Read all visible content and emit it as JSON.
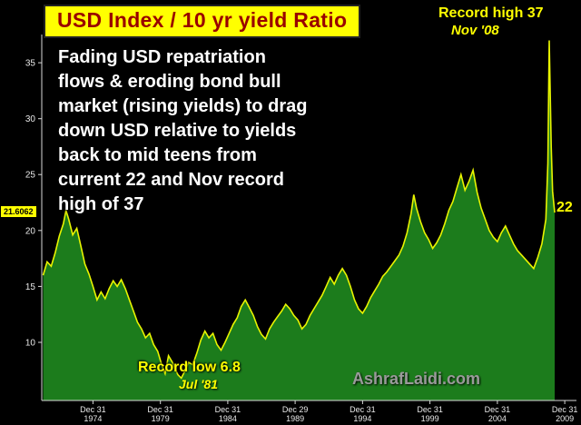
{
  "header": {
    "title": "USD Index / 10 yr yield Ratio",
    "record_high_label": "Record high 37",
    "record_high_date": "Nov '08"
  },
  "commentary": "Fading USD repatriation\nflows & eroding bond bull\nmarket (rising yields) to drag\ndown USD relative to yields\nback to mid teens from\ncurrent 22 and Nov record\nhigh of 37",
  "markers": {
    "axis_price": "21.6062",
    "current_level": "22",
    "record_low_label": "Record low 6.8",
    "record_low_date": "Jul '81"
  },
  "watermark": "AshrafLaidi.com",
  "colors": {
    "background": "#000000",
    "area_fill": "#1c7c1c",
    "line": "#e8f400",
    "accent_yellow": "#ffff00",
    "title_bg": "#ffff00",
    "title_text": "#990000",
    "axis_color": "#d8d8d8",
    "axis_text": "#e8e8e8",
    "watermark_text": "#9a9a9a"
  },
  "chart_data": {
    "type": "area",
    "title": "USD Index / 10 yr yield Ratio",
    "xlabel": "",
    "ylabel": "",
    "grid": false,
    "xlim": [
      1971.2,
      2010.6
    ],
    "ylim": [
      4.8,
      37.2
    ],
    "y_ticks": [
      10,
      15,
      20,
      25,
      30,
      35
    ],
    "x_ticks": [
      {
        "year": 1975.0,
        "line1": "Dec 31",
        "line2": "1974"
      },
      {
        "year": 1980.0,
        "line1": "Dec 31",
        "line2": "1979"
      },
      {
        "year": 1985.0,
        "line1": "Dec 31",
        "line2": "1984"
      },
      {
        "year": 1990.0,
        "line1": "Dec 29",
        "line2": "1989"
      },
      {
        "year": 1995.0,
        "line1": "Dec 31",
        "line2": "1994"
      },
      {
        "year": 2000.0,
        "line1": "Dec 31",
        "line2": "1999"
      },
      {
        "year": 2005.0,
        "line1": "Dec 31",
        "line2": "2004"
      },
      {
        "year": 2010.0,
        "line1": "Dec 31",
        "line2": "2009"
      }
    ],
    "notable_points": {
      "record_low": {
        "x": 1981.55,
        "value": 6.8,
        "label": "Jul '81"
      },
      "record_high": {
        "x": 2008.85,
        "value": 37,
        "label": "Nov '08"
      },
      "last": {
        "x": 2009.25,
        "value": 21.6062
      }
    },
    "points": [
      [
        1971.3,
        16.0
      ],
      [
        1971.6,
        17.2
      ],
      [
        1971.9,
        16.8
      ],
      [
        1972.2,
        18.0
      ],
      [
        1972.5,
        19.5
      ],
      [
        1972.8,
        20.6
      ],
      [
        1973.0,
        21.8
      ],
      [
        1973.2,
        21.0
      ],
      [
        1973.5,
        19.6
      ],
      [
        1973.8,
        20.2
      ],
      [
        1974.1,
        18.6
      ],
      [
        1974.4,
        17.0
      ],
      [
        1974.7,
        16.1
      ],
      [
        1975.0,
        15.0
      ],
      [
        1975.3,
        13.8
      ],
      [
        1975.6,
        14.5
      ],
      [
        1975.9,
        13.9
      ],
      [
        1976.2,
        14.8
      ],
      [
        1976.5,
        15.5
      ],
      [
        1976.8,
        15.0
      ],
      [
        1977.1,
        15.6
      ],
      [
        1977.4,
        14.8
      ],
      [
        1977.7,
        13.8
      ],
      [
        1978.0,
        12.8
      ],
      [
        1978.3,
        11.8
      ],
      [
        1978.6,
        11.2
      ],
      [
        1978.9,
        10.4
      ],
      [
        1979.2,
        10.8
      ],
      [
        1979.5,
        9.8
      ],
      [
        1979.8,
        9.2
      ],
      [
        1980.1,
        8.0
      ],
      [
        1980.35,
        7.2
      ],
      [
        1980.6,
        8.8
      ],
      [
        1980.9,
        8.2
      ],
      [
        1981.1,
        7.6
      ],
      [
        1981.3,
        7.1
      ],
      [
        1981.55,
        6.8
      ],
      [
        1981.8,
        7.4
      ],
      [
        1982.1,
        8.2
      ],
      [
        1982.4,
        8.0
      ],
      [
        1982.7,
        9.0
      ],
      [
        1983.0,
        10.2
      ],
      [
        1983.3,
        11.0
      ],
      [
        1983.6,
        10.4
      ],
      [
        1983.9,
        10.8
      ],
      [
        1984.2,
        9.8
      ],
      [
        1984.5,
        9.3
      ],
      [
        1984.8,
        10.0
      ],
      [
        1985.1,
        10.8
      ],
      [
        1985.4,
        11.6
      ],
      [
        1985.7,
        12.2
      ],
      [
        1986.0,
        13.2
      ],
      [
        1986.3,
        13.8
      ],
      [
        1986.6,
        13.1
      ],
      [
        1986.9,
        12.4
      ],
      [
        1987.2,
        11.4
      ],
      [
        1987.5,
        10.7
      ],
      [
        1987.8,
        10.3
      ],
      [
        1988.1,
        11.2
      ],
      [
        1988.4,
        11.8
      ],
      [
        1988.7,
        12.3
      ],
      [
        1989.0,
        12.8
      ],
      [
        1989.3,
        13.4
      ],
      [
        1989.6,
        13.0
      ],
      [
        1989.9,
        12.4
      ],
      [
        1990.2,
        12.0
      ],
      [
        1990.5,
        11.2
      ],
      [
        1990.8,
        11.6
      ],
      [
        1991.1,
        12.4
      ],
      [
        1991.4,
        13.0
      ],
      [
        1991.7,
        13.6
      ],
      [
        1992.0,
        14.2
      ],
      [
        1992.3,
        15.0
      ],
      [
        1992.6,
        15.8
      ],
      [
        1992.9,
        15.2
      ],
      [
        1993.2,
        16.0
      ],
      [
        1993.5,
        16.6
      ],
      [
        1993.8,
        16.0
      ],
      [
        1994.1,
        15.0
      ],
      [
        1994.4,
        13.8
      ],
      [
        1994.7,
        13.0
      ],
      [
        1995.0,
        12.6
      ],
      [
        1995.3,
        13.2
      ],
      [
        1995.6,
        14.0
      ],
      [
        1995.9,
        14.6
      ],
      [
        1996.2,
        15.2
      ],
      [
        1996.5,
        15.9
      ],
      [
        1996.8,
        16.3
      ],
      [
        1997.1,
        16.8
      ],
      [
        1997.4,
        17.3
      ],
      [
        1997.7,
        17.8
      ],
      [
        1998.0,
        18.6
      ],
      [
        1998.3,
        19.8
      ],
      [
        1998.6,
        21.5
      ],
      [
        1998.8,
        23.2
      ],
      [
        1999.0,
        22.0
      ],
      [
        1999.3,
        20.8
      ],
      [
        1999.6,
        19.8
      ],
      [
        1999.9,
        19.2
      ],
      [
        2000.2,
        18.4
      ],
      [
        2000.5,
        18.9
      ],
      [
        2000.8,
        19.6
      ],
      [
        2001.1,
        20.6
      ],
      [
        2001.4,
        21.8
      ],
      [
        2001.7,
        22.6
      ],
      [
        2002.0,
        23.8
      ],
      [
        2002.3,
        25.0
      ],
      [
        2002.6,
        23.6
      ],
      [
        2002.9,
        24.4
      ],
      [
        2003.2,
        25.4
      ],
      [
        2003.5,
        23.4
      ],
      [
        2003.8,
        22.0
      ],
      [
        2004.1,
        21.0
      ],
      [
        2004.4,
        20.0
      ],
      [
        2004.7,
        19.4
      ],
      [
        2005.0,
        19.0
      ],
      [
        2005.3,
        19.8
      ],
      [
        2005.6,
        20.4
      ],
      [
        2005.9,
        19.6
      ],
      [
        2006.2,
        18.8
      ],
      [
        2006.5,
        18.2
      ],
      [
        2006.8,
        17.8
      ],
      [
        2007.1,
        17.4
      ],
      [
        2007.4,
        17.0
      ],
      [
        2007.7,
        16.6
      ],
      [
        2008.0,
        17.6
      ],
      [
        2008.3,
        18.8
      ],
      [
        2008.6,
        21.0
      ],
      [
        2008.75,
        26.0
      ],
      [
        2008.85,
        37.0
      ],
      [
        2009.0,
        27.5
      ],
      [
        2009.1,
        23.5
      ],
      [
        2009.25,
        21.6
      ]
    ]
  }
}
